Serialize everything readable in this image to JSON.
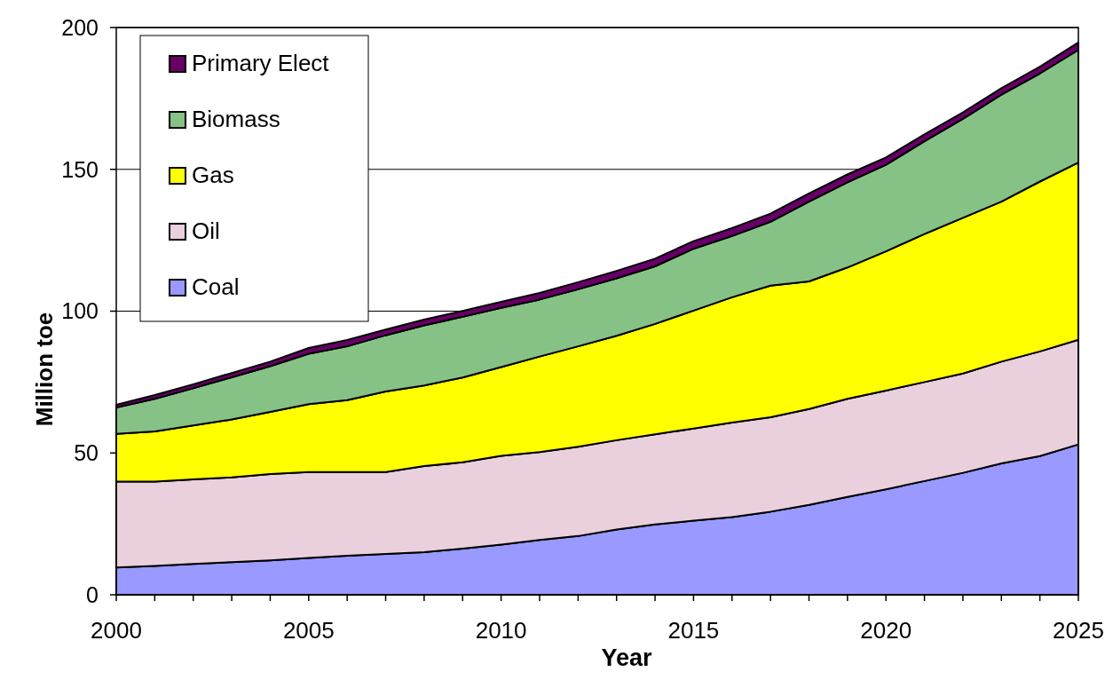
{
  "chart_data": {
    "type": "area",
    "stacked": true,
    "xlabel": "Year",
    "ylabel": "Million toe",
    "x": [
      2000,
      2001,
      2002,
      2003,
      2004,
      2005,
      2006,
      2007,
      2008,
      2009,
      2010,
      2011,
      2012,
      2013,
      2014,
      2015,
      2016,
      2017,
      2018,
      2019,
      2020,
      2021,
      2022,
      2023,
      2024,
      2025
    ],
    "xlim": [
      2000,
      2025
    ],
    "xticks": [
      2000,
      {
        "value": 2001,
        "label": null
      },
      {
        "value": 2002,
        "label": null
      },
      {
        "value": 2003,
        "label": null
      },
      {
        "value": 2004,
        "label": null
      },
      2005,
      {
        "value": 2006,
        "label": null
      },
      {
        "value": 2007,
        "label": null
      },
      {
        "value": 2008,
        "label": null
      },
      {
        "value": 2009,
        "label": null
      },
      2010,
      {
        "value": 2011,
        "label": null
      },
      {
        "value": 2012,
        "label": null
      },
      {
        "value": 2013,
        "label": null
      },
      {
        "value": 2014,
        "label": null
      },
      2015,
      {
        "value": 2016,
        "label": null
      },
      {
        "value": 2017,
        "label": null
      },
      {
        "value": 2018,
        "label": null
      },
      {
        "value": 2019,
        "label": null
      },
      2020,
      {
        "value": 2021,
        "label": null
      },
      {
        "value": 2022,
        "label": null
      },
      {
        "value": 2023,
        "label": null
      },
      {
        "value": 2024,
        "label": null
      },
      2025
    ],
    "ylim": [
      0,
      200
    ],
    "yticks": [
      0,
      50,
      100,
      150,
      200
    ],
    "grid": "y",
    "legend": "top left",
    "series": [
      {
        "name": "Coal",
        "color": "#9999ff",
        "values": [
          9.6,
          10.2,
          10.9,
          11.5,
          12.1,
          13.0,
          13.8,
          14.4,
          15.0,
          16.3,
          17.7,
          19.3,
          20.7,
          23.0,
          24.8,
          26.1,
          27.4,
          29.3,
          31.7,
          34.5,
          37.2,
          40.1,
          43.0,
          46.3,
          48.9,
          53.0
        ]
      },
      {
        "name": "Oil",
        "color": "#ead0dc",
        "values": [
          30.3,
          29.7,
          29.8,
          29.9,
          30.5,
          30.3,
          29.5,
          28.9,
          30.4,
          30.4,
          31.3,
          31.0,
          31.5,
          31.5,
          31.8,
          32.5,
          33.3,
          33.3,
          33.8,
          34.6,
          34.8,
          34.9,
          35.0,
          35.9,
          36.9,
          36.9
        ]
      },
      {
        "name": "Gas",
        "color": "#ffff00",
        "values": [
          16.8,
          17.7,
          19.0,
          20.4,
          21.9,
          23.9,
          25.3,
          28.4,
          28.4,
          29.9,
          31.3,
          33.7,
          35.4,
          36.8,
          38.9,
          41.6,
          44.2,
          46.4,
          45.0,
          46.3,
          49.1,
          52.2,
          54.9,
          56.4,
          59.9,
          62.5
        ]
      },
      {
        "name": "Biomass",
        "color": "#86c286",
        "values": [
          9.3,
          11.5,
          13.1,
          14.9,
          16.1,
          17.8,
          19.0,
          19.8,
          21.2,
          21.4,
          20.9,
          20.1,
          20.1,
          20.3,
          20.3,
          21.8,
          21.6,
          22.5,
          28.1,
          30.0,
          30.5,
          32.7,
          34.9,
          37.7,
          38.1,
          39.7
        ]
      },
      {
        "name": "Primary Elect",
        "color": "#660066",
        "values": [
          1.0,
          1.3,
          1.4,
          1.5,
          1.6,
          2.0,
          2.2,
          2.0,
          2.0,
          2.1,
          2.1,
          2.3,
          2.5,
          2.6,
          2.7,
          2.7,
          2.8,
          2.9,
          2.9,
          2.8,
          2.6,
          2.4,
          2.3,
          2.3,
          2.4,
          2.6
        ]
      }
    ]
  }
}
